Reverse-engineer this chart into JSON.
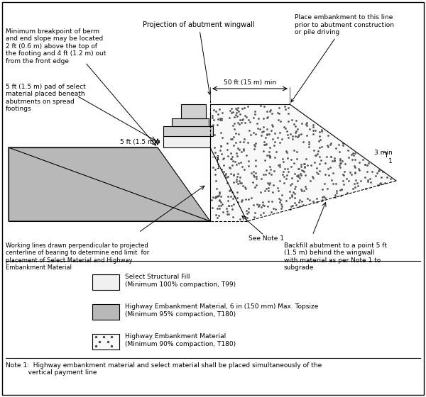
{
  "bg_color": "#ffffff",
  "lc": "#000000",
  "gray_embankment": "#b8b8b8",
  "select_fill": "#f0f0f0",
  "dotted_fill": "#f8f8f8",
  "abutment_fill": "#d0d0d0",
  "fig_width": 6.0,
  "fig_height": 5.6,
  "fs": 7.0,
  "fs_small": 6.5,
  "annotations": {
    "proj_wingwall": "Projection of abutment wingwall",
    "place_embankment": "Place embankment to this line\nprior to abutment construction\nor pile driving",
    "min_breakpoint": "Minimum breakpoint of berm\nand end slope may be located\n2 ft (0.6 m) above the top of\nthe footing and 4 ft (1.2 m) out\nfrom the front edge",
    "select_pad": "5 ft (1.5 m) pad of select\nmaterial placed beneath\nabutments on spread\nfootings",
    "working_lines": "Working lines drawn perpendicular to projected\ncenterline of bearing to determine end limit  for\nplacement of Select Material and Highway\nEmbankment Material",
    "backfill": "Backfill abutment to a point 5 ft\n(1.5 m) behind the wingwall\nwith material as per Note 1 to\nsubgrade",
    "see_note1": "See Note 1",
    "50ft": "50 ft (15 m) min",
    "5ft_label": "▼ 5 ft (1.5 m)",
    "3min": "3 min",
    "note1": "Note 1:  Highway embankment material and select material shall be placed simultaneously of the\n           vertical payment line"
  },
  "legend": [
    {
      "label": "Select Structural Fill\n(Minimum 100% compaction, T99)",
      "fc": "#f0f0f0",
      "gc": "#b8b8b8",
      "dots": false
    },
    {
      "label": "Highway Embankment Material, 6 in (150 mm) Max. Topsize\n(Minimum 95% compaction, T180)",
      "fc": "#b8b8b8",
      "gc": null,
      "dots": false
    },
    {
      "label": "Highway Embankment Material\n(Minimum 90% compaction, T180)",
      "fc": "#f8f8f8",
      "gc": null,
      "dots": true
    }
  ]
}
